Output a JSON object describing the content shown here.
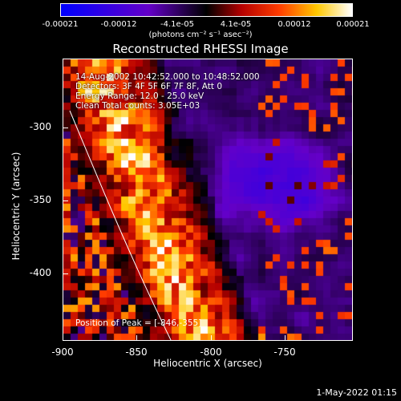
{
  "colorbar": {
    "ticks": [
      "-0.00021",
      "-0.00012",
      "-4.1e-05",
      "4.1e-05",
      "0.00012",
      "0.00021"
    ],
    "units": "(photons cm⁻² s⁻¹ asec⁻²)"
  },
  "title": "Reconstructed RHESSI Image",
  "annotations": {
    "time": "14-Aug-2002 10:42:52.000 to 10:48:52.000",
    "detectors": "Detectors: 3F 4F 5F 6F 7F 8F, Att 0",
    "energy": "Energy Range: 12.0 - 25.0 keV",
    "clean": "Clean    Total counts: 3.05E+03",
    "peak": "Position of Peak = [-846,-355]"
  },
  "axes": {
    "xlabel": "Heliocentric X (arcsec)",
    "ylabel": "Heliocentric Y (arcsec)",
    "xticks": [
      "-900",
      "-850",
      "-800",
      "-750"
    ],
    "yticks": [
      "-300",
      "-350",
      "-400"
    ]
  },
  "timestamp": "1-May-2022 01:15"
}
